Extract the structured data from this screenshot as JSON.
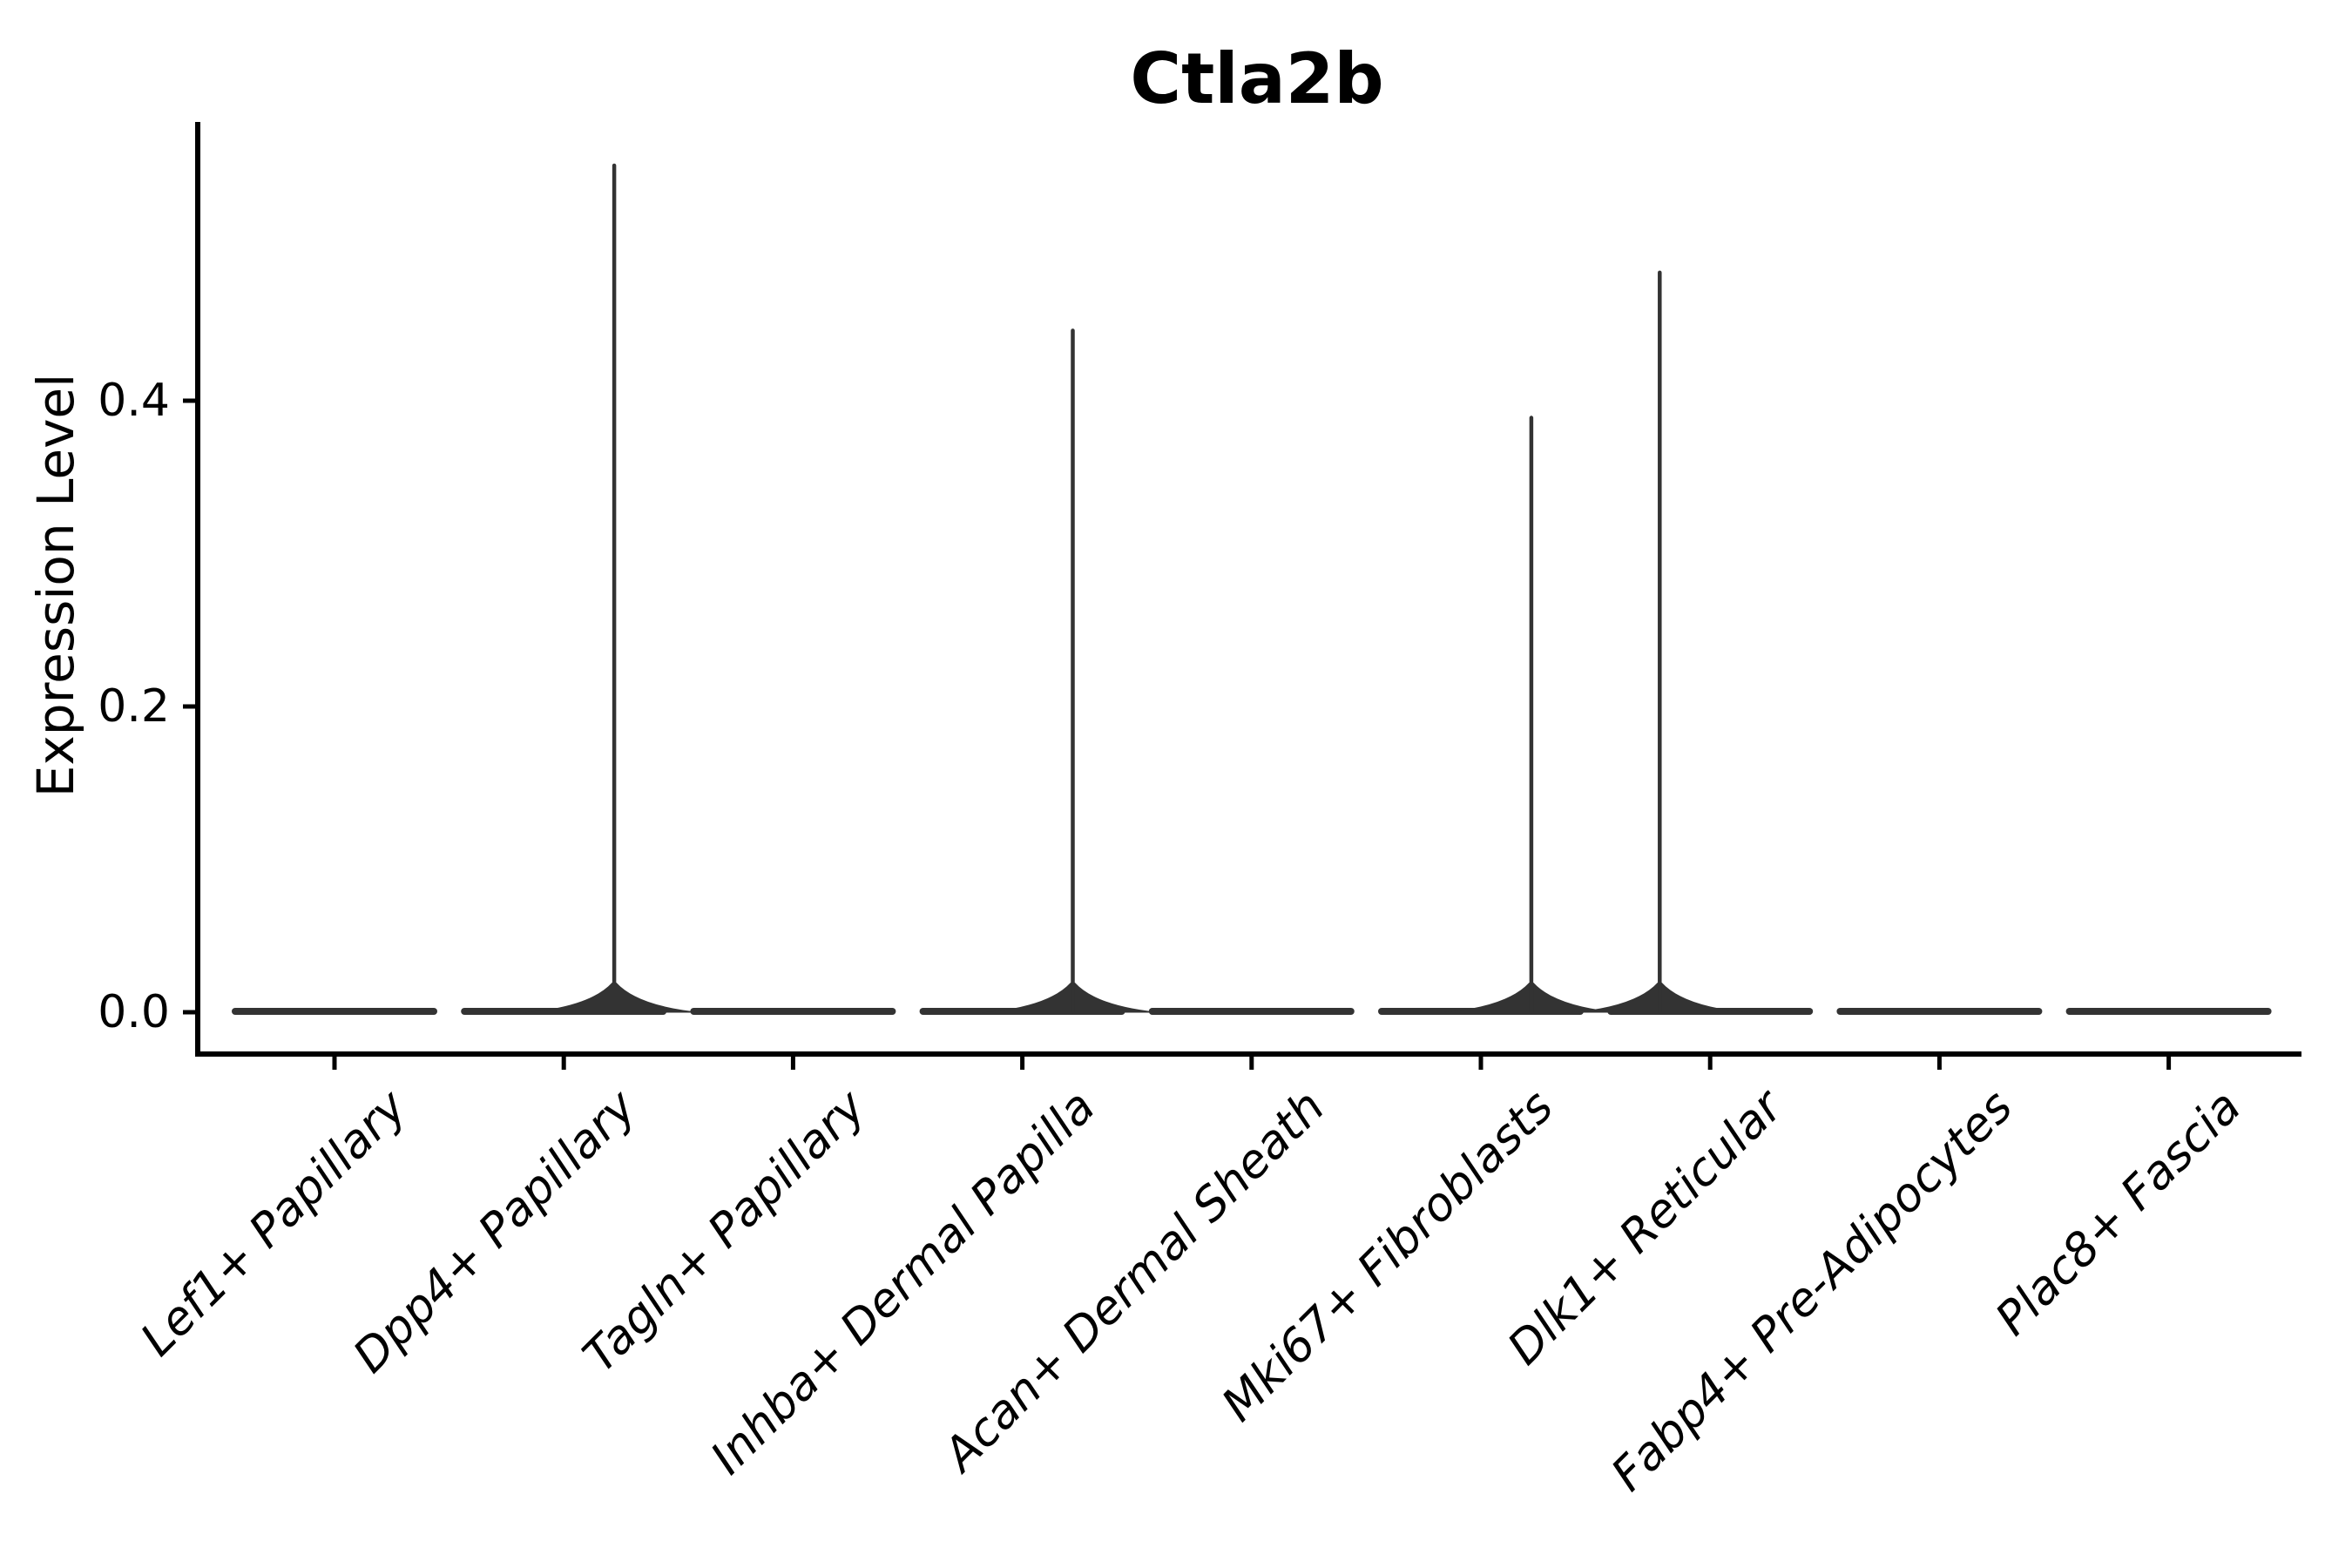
{
  "chart_data": {
    "type": "violin",
    "title": "Ctla2b",
    "xlabel": "",
    "ylabel": "Expression Level",
    "yticks": [
      "0.0",
      "0.2",
      "0.4"
    ],
    "ylim": [
      -0.03,
      0.58
    ],
    "grid": false,
    "legend": "none",
    "violin_width": 0.9,
    "note": "All violins are collapsed flat at expression 0; four clusters show a thin density tail (spike) up to their max expression value",
    "categories": [
      {
        "label": "Lef1+ Papillary",
        "max_expression": 0.0,
        "tail_offset": 0
      },
      {
        "label": "Dpp4+ Papillary",
        "max_expression": 0.555,
        "tail_offset": 0.22
      },
      {
        "label": "Tagln+ Papillary",
        "max_expression": 0.0,
        "tail_offset": 0
      },
      {
        "label": "Inhba+ Dermal Papilla",
        "max_expression": 0.447,
        "tail_offset": 0.22
      },
      {
        "label": "Acan+ Dermal Sheath",
        "max_expression": 0.0,
        "tail_offset": 0
      },
      {
        "label": "Mki67+ Fibroblasts",
        "max_expression": 0.39,
        "tail_offset": 0.22
      },
      {
        "label": "Dlk1+ Reticular",
        "max_expression": 0.485,
        "tail_offset": -0.22
      },
      {
        "label": "Fabp4+ Pre-Adipocytes",
        "max_expression": 0.0,
        "tail_offset": 0
      },
      {
        "label": "Plac8+ Fascia",
        "max_expression": 0.0,
        "tail_offset": 0
      }
    ],
    "colors": {
      "violin_edge": "#333333",
      "axis": "#000000",
      "text": "#000000",
      "background": "#ffffff"
    }
  }
}
